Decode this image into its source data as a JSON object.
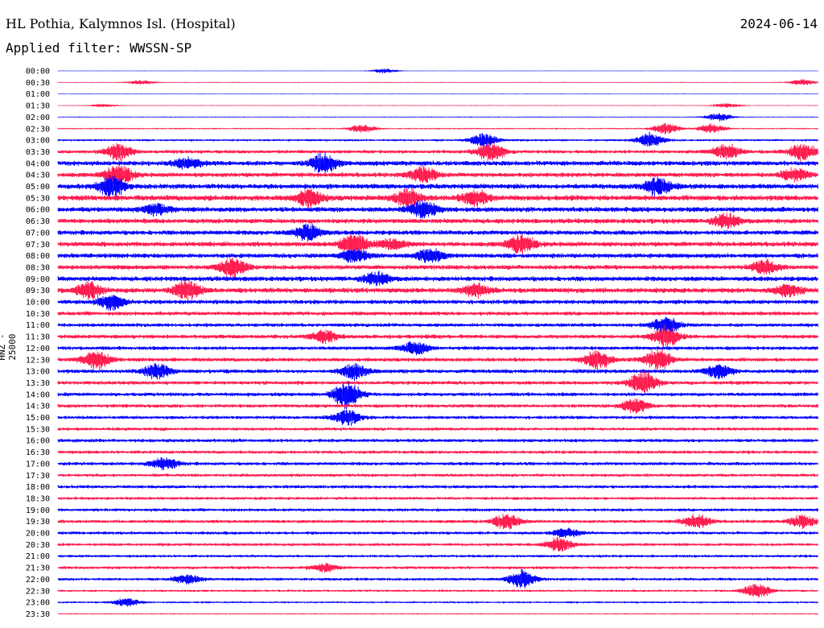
{
  "header": {
    "station": "HL Pothia, Kalymnos Isl. (Hospital)",
    "date": "2024-06-14",
    "filter": "Applied filter: WWSSN-SP"
  },
  "channel_label": "HNZ - 25000",
  "colors": {
    "even_row": "#0000ff",
    "odd_row": "#ff1a4d"
  },
  "chart_data": {
    "type": "line",
    "title": "HL Pothia, Kalymnos Isl. (Hospital)",
    "ylabel": "HNZ - 25000",
    "row_labels": [
      "00:00",
      "00:30",
      "01:00",
      "01:30",
      "02:00",
      "02:30",
      "03:00",
      "03:30",
      "04:00",
      "04:30",
      "05:00",
      "05:30",
      "06:00",
      "06:30",
      "07:00",
      "07:30",
      "08:00",
      "08:30",
      "09:00",
      "09:30",
      "10:00",
      "10:30",
      "11:00",
      "11:30",
      "12:00",
      "12:30",
      "13:00",
      "13:30",
      "14:00",
      "14:30",
      "15:00",
      "15:30",
      "16:00",
      "16:30",
      "17:00",
      "17:30",
      "18:00",
      "18:30",
      "19:00",
      "19:30",
      "20:00",
      "20:30",
      "21:00",
      "21:30",
      "22:00",
      "22:30",
      "23:00",
      "23:30"
    ],
    "row_noise": [
      0.3,
      0.6,
      0.4,
      0.5,
      0.7,
      1.0,
      1.6,
      2.5,
      3.4,
      3.2,
      3.6,
      3.8,
      3.6,
      3.4,
      3.3,
      3.4,
      3.3,
      3.2,
      3.4,
      3.6,
      3.0,
      2.8,
      2.6,
      2.8,
      2.6,
      2.7,
      2.8,
      2.6,
      2.6,
      2.5,
      2.3,
      2.3,
      2.4,
      2.3,
      2.4,
      2.2,
      2.3,
      2.1,
      2.2,
      2.3,
      2.2,
      2.1,
      1.9,
      2.1,
      2.0,
      1.6,
      1.4,
      0.9
    ],
    "events": [
      {
        "row": 0,
        "t": 0.43,
        "amp": 3
      },
      {
        "row": 1,
        "t": 0.11,
        "amp": 3
      },
      {
        "row": 1,
        "t": 0.98,
        "amp": 4
      },
      {
        "row": 3,
        "t": 0.06,
        "amp": 2
      },
      {
        "row": 3,
        "t": 0.88,
        "amp": 3
      },
      {
        "row": 4,
        "t": 0.87,
        "amp": 5
      },
      {
        "row": 5,
        "t": 0.4,
        "amp": 5
      },
      {
        "row": 5,
        "t": 0.8,
        "amp": 7
      },
      {
        "row": 5,
        "t": 0.86,
        "amp": 6
      },
      {
        "row": 6,
        "t": 0.56,
        "amp": 9
      },
      {
        "row": 6,
        "t": 0.78,
        "amp": 9
      },
      {
        "row": 7,
        "t": 0.08,
        "amp": 11
      },
      {
        "row": 7,
        "t": 0.57,
        "amp": 12
      },
      {
        "row": 7,
        "t": 0.88,
        "amp": 10
      },
      {
        "row": 7,
        "t": 0.98,
        "amp": 11
      },
      {
        "row": 8,
        "t": 0.35,
        "amp": 13
      },
      {
        "row": 8,
        "t": 0.17,
        "amp": 7
      },
      {
        "row": 9,
        "t": 0.08,
        "amp": 13
      },
      {
        "row": 9,
        "t": 0.48,
        "amp": 10
      },
      {
        "row": 9,
        "t": 0.97,
        "amp": 8
      },
      {
        "row": 10,
        "t": 0.07,
        "amp": 14
      },
      {
        "row": 10,
        "t": 0.79,
        "amp": 12
      },
      {
        "row": 11,
        "t": 0.33,
        "amp": 12
      },
      {
        "row": 11,
        "t": 0.46,
        "amp": 11
      },
      {
        "row": 11,
        "t": 0.55,
        "amp": 10
      },
      {
        "row": 12,
        "t": 0.48,
        "amp": 11
      },
      {
        "row": 12,
        "t": 0.13,
        "amp": 7
      },
      {
        "row": 13,
        "t": 0.88,
        "amp": 9
      },
      {
        "row": 14,
        "t": 0.33,
        "amp": 11
      },
      {
        "row": 15,
        "t": 0.39,
        "amp": 14
      },
      {
        "row": 15,
        "t": 0.44,
        "amp": 7
      },
      {
        "row": 15,
        "t": 0.61,
        "amp": 12
      },
      {
        "row": 16,
        "t": 0.39,
        "amp": 9
      },
      {
        "row": 16,
        "t": 0.49,
        "amp": 9
      },
      {
        "row": 17,
        "t": 0.23,
        "amp": 12
      },
      {
        "row": 17,
        "t": 0.93,
        "amp": 9
      },
      {
        "row": 18,
        "t": 0.42,
        "amp": 8
      },
      {
        "row": 19,
        "t": 0.04,
        "amp": 11
      },
      {
        "row": 19,
        "t": 0.17,
        "amp": 13
      },
      {
        "row": 19,
        "t": 0.55,
        "amp": 8
      },
      {
        "row": 19,
        "t": 0.96,
        "amp": 8
      },
      {
        "row": 20,
        "t": 0.07,
        "amp": 10
      },
      {
        "row": 22,
        "t": 0.8,
        "amp": 11
      },
      {
        "row": 23,
        "t": 0.8,
        "amp": 13
      },
      {
        "row": 23,
        "t": 0.35,
        "amp": 8
      },
      {
        "row": 24,
        "t": 0.47,
        "amp": 8
      },
      {
        "row": 25,
        "t": 0.05,
        "amp": 13
      },
      {
        "row": 25,
        "t": 0.71,
        "amp": 12
      },
      {
        "row": 25,
        "t": 0.79,
        "amp": 14
      },
      {
        "row": 26,
        "t": 0.13,
        "amp": 10
      },
      {
        "row": 26,
        "t": 0.39,
        "amp": 10
      },
      {
        "row": 26,
        "t": 0.87,
        "amp": 9
      },
      {
        "row": 27,
        "t": 0.77,
        "amp": 15
      },
      {
        "row": 28,
        "t": 0.38,
        "amp": 18
      },
      {
        "row": 29,
        "t": 0.76,
        "amp": 9
      },
      {
        "row": 30,
        "t": 0.38,
        "amp": 10
      },
      {
        "row": 34,
        "t": 0.14,
        "amp": 8
      },
      {
        "row": 39,
        "t": 0.59,
        "amp": 10
      },
      {
        "row": 39,
        "t": 0.84,
        "amp": 9
      },
      {
        "row": 39,
        "t": 0.98,
        "amp": 8
      },
      {
        "row": 40,
        "t": 0.67,
        "amp": 6
      },
      {
        "row": 41,
        "t": 0.66,
        "amp": 9
      },
      {
        "row": 43,
        "t": 0.35,
        "amp": 5
      },
      {
        "row": 44,
        "t": 0.17,
        "amp": 6
      },
      {
        "row": 44,
        "t": 0.61,
        "amp": 12
      },
      {
        "row": 45,
        "t": 0.92,
        "amp": 10
      },
      {
        "row": 46,
        "t": 0.09,
        "amp": 5
      }
    ]
  }
}
